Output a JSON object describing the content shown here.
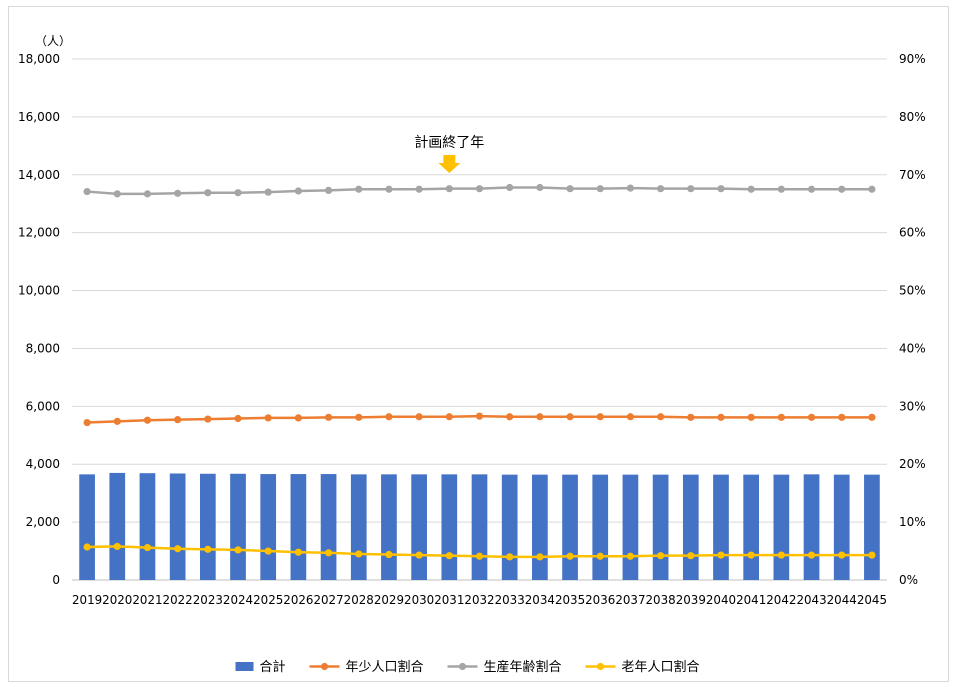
{
  "chart_data": {
    "type": "bar+line",
    "unit_label": "（人）",
    "annotation": {
      "text": "計画終了年",
      "at": "2031",
      "arrow_color": "#ffc000"
    },
    "categories": [
      "2019",
      "2020",
      "2021",
      "2022",
      "2023",
      "2024",
      "2025",
      "2026",
      "2027",
      "2028",
      "2029",
      "2030",
      "2031",
      "2032",
      "2033",
      "2034",
      "2035",
      "2036",
      "2037",
      "2038",
      "2039",
      "2040",
      "2041",
      "2042",
      "2043",
      "2044",
      "2045"
    ],
    "y_left": {
      "min": 0,
      "max": 18000,
      "step": 2000,
      "ticks": [
        "0",
        "2,000",
        "4,000",
        "6,000",
        "8,000",
        "10,000",
        "12,000",
        "14,000",
        "16,000",
        "18,000"
      ]
    },
    "y_right": {
      "min": 0,
      "max": 0.9,
      "step": 0.1,
      "ticks": [
        "0%",
        "10%",
        "20%",
        "30%",
        "40%",
        "50%",
        "60%",
        "70%",
        "80%",
        "90%"
      ]
    },
    "grid": true,
    "legend_position": "bottom",
    "series": [
      {
        "name": "合計",
        "kind": "bar",
        "axis": "left",
        "color": "#4472c4",
        "values": [
          3650,
          3700,
          3690,
          3680,
          3670,
          3670,
          3660,
          3660,
          3660,
          3650,
          3650,
          3650,
          3650,
          3650,
          3640,
          3640,
          3640,
          3640,
          3640,
          3640,
          3640,
          3640,
          3640,
          3640,
          3650,
          3640,
          3640
        ]
      },
      {
        "name": "年少人口割合",
        "kind": "line",
        "axis": "right",
        "color": "#ed7d31",
        "values": [
          0.272,
          0.274,
          0.276,
          0.277,
          0.278,
          0.279,
          0.28,
          0.28,
          0.281,
          0.281,
          0.282,
          0.282,
          0.282,
          0.283,
          0.282,
          0.282,
          0.282,
          0.282,
          0.282,
          0.282,
          0.281,
          0.281,
          0.281,
          0.281,
          0.281,
          0.281,
          0.281
        ]
      },
      {
        "name": "生産年齢割合",
        "kind": "line",
        "axis": "right",
        "color": "#a5a5a5",
        "values": [
          0.671,
          0.667,
          0.667,
          0.668,
          0.669,
          0.669,
          0.67,
          0.672,
          0.673,
          0.675,
          0.675,
          0.675,
          0.676,
          0.676,
          0.678,
          0.678,
          0.676,
          0.676,
          0.677,
          0.676,
          0.676,
          0.676,
          0.675,
          0.675,
          0.675,
          0.675,
          0.675
        ]
      },
      {
        "name": "老年人口割合",
        "kind": "line",
        "axis": "right",
        "color": "#ffc000",
        "values": [
          0.057,
          0.058,
          0.056,
          0.054,
          0.053,
          0.052,
          0.05,
          0.048,
          0.047,
          0.045,
          0.044,
          0.043,
          0.042,
          0.041,
          0.04,
          0.04,
          0.041,
          0.041,
          0.041,
          0.042,
          0.042,
          0.043,
          0.043,
          0.043,
          0.043,
          0.043,
          0.043
        ]
      }
    ]
  }
}
